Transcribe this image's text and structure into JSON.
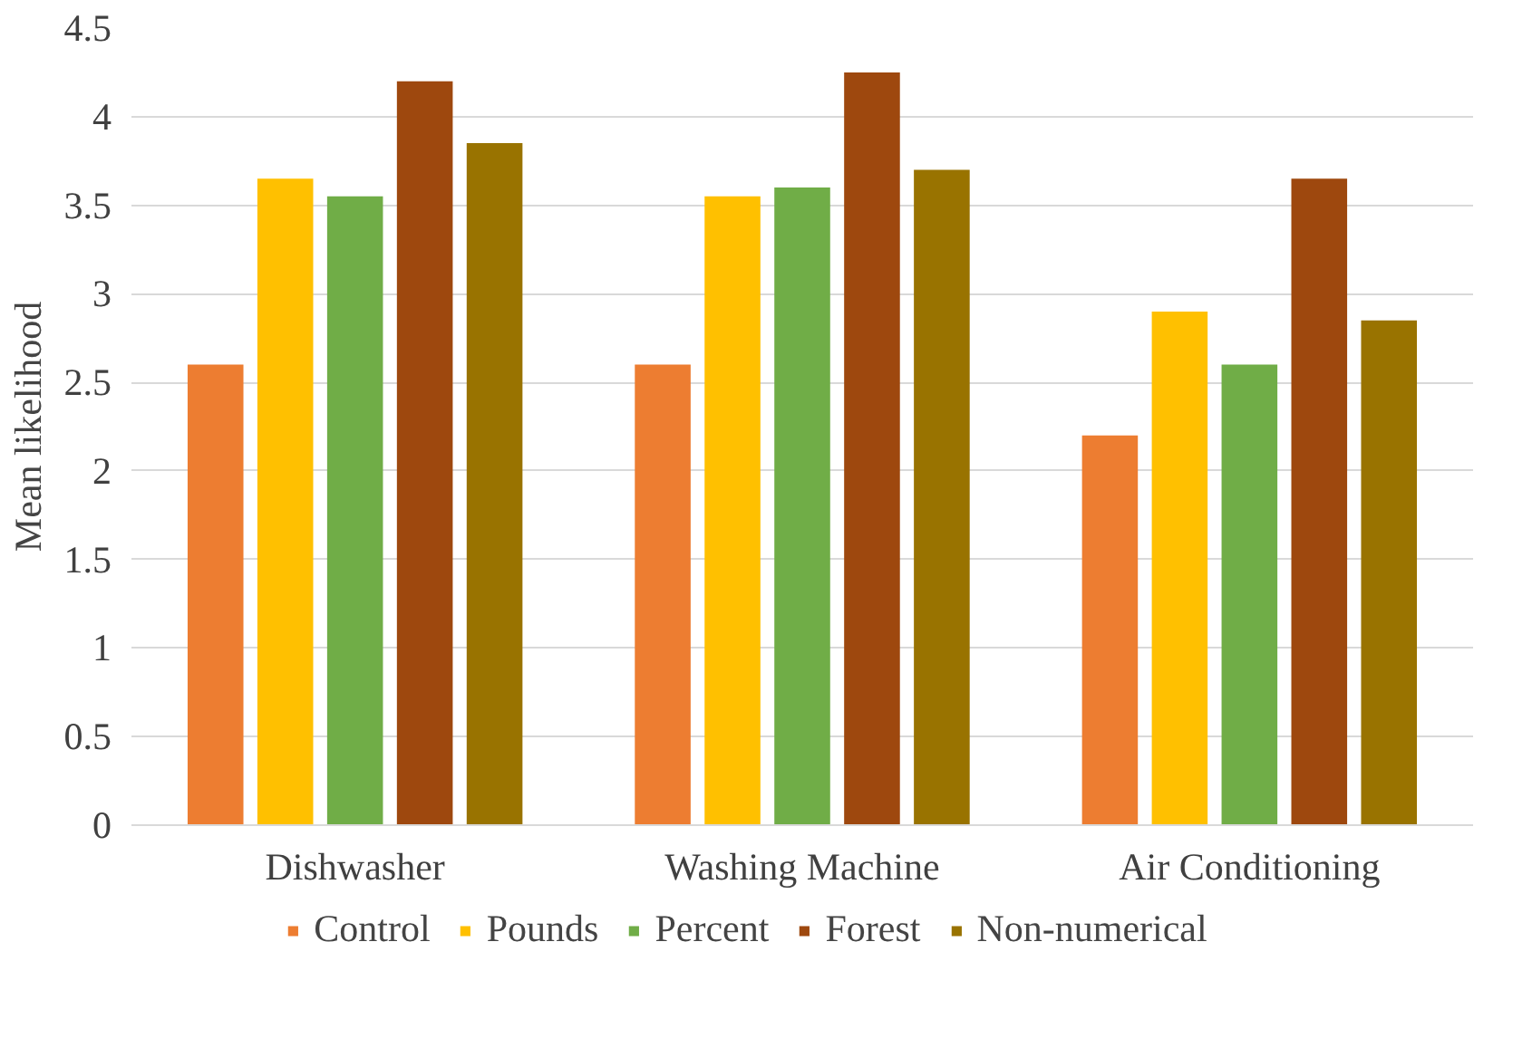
{
  "chart_data": {
    "type": "bar",
    "ylabel": "Mean likelihood",
    "categories": [
      "Dishwasher",
      "Washing Machine",
      "Air Conditioning"
    ],
    "series": [
      {
        "name": "Control",
        "color": "#ed7d31",
        "values": [
          2.6,
          2.6,
          2.2
        ]
      },
      {
        "name": "Pounds",
        "color": "#ffc000",
        "values": [
          3.65,
          3.55,
          2.9
        ]
      },
      {
        "name": "Percent",
        "color": "#70ad47",
        "values": [
          3.55,
          3.6,
          2.6
        ]
      },
      {
        "name": "Forest",
        "color": "#9e480e",
        "values": [
          4.2,
          4.25,
          3.65
        ]
      },
      {
        "name": "Non-numerical",
        "color": "#997300",
        "values": [
          3.85,
          3.7,
          2.85
        ]
      }
    ],
    "ylim": [
      0,
      4.5
    ],
    "yticks": [
      0,
      0.5,
      1,
      1.5,
      2,
      2.5,
      3,
      3.5,
      4,
      4.5
    ],
    "grid": "y",
    "legend": "bottom"
  }
}
